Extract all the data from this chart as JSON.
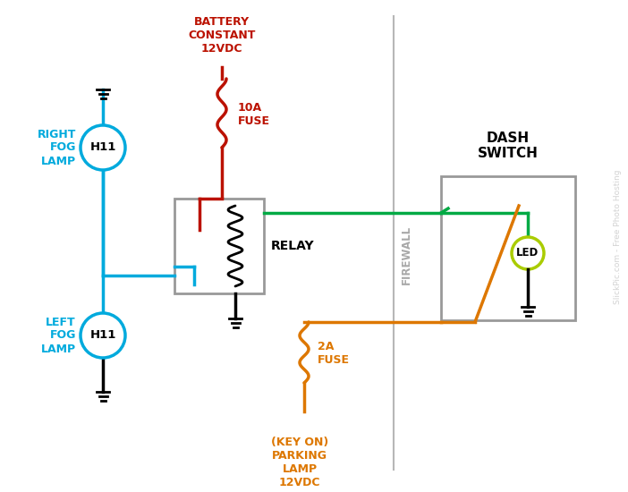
{
  "bg_color": "#ffffff",
  "colors": {
    "blue": "#00aadd",
    "red": "#bb1100",
    "green": "#00aa44",
    "orange": "#dd7700",
    "black": "#000000",
    "gray": "#999999",
    "led_circle": "#aacc00"
  },
  "labels": {
    "battery": "BATTERY\nCONSTANT\n12VDC",
    "fuse10a": "10A\nFUSE",
    "fuse2a": "2A\nFUSE",
    "relay": "RELAY",
    "right_lamp": "RIGHT\nFOG\nLAMP",
    "left_lamp": "LEFT\nFOG\nLAMP",
    "dash_switch": "DASH\nSWITCH",
    "firewall": "FIREWALL",
    "parking": "(KEY ON)\nPARKING\nLAMP\n12VDC",
    "h11": "H11",
    "led": "LED",
    "watermark": "SlickPic.com - Free Photo Hosting"
  }
}
